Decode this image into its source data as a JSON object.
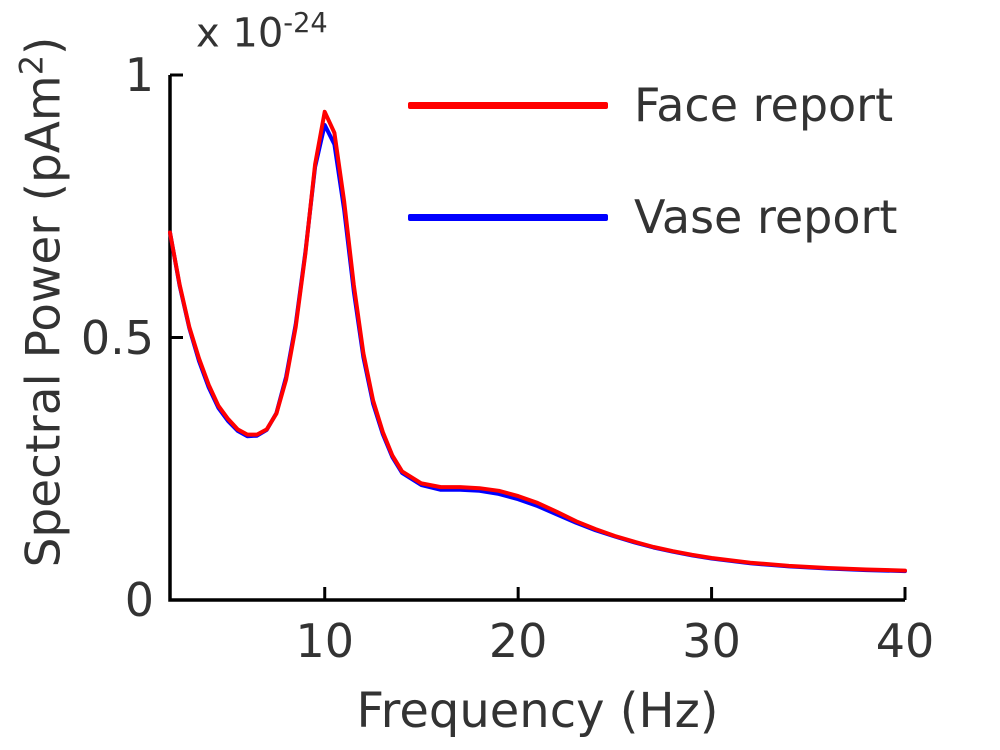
{
  "colors": {
    "axis": "#000000",
    "text": "#333333",
    "background": "#ffffff"
  },
  "chart_data": {
    "type": "line",
    "title": "",
    "xlabel": "Frequency (Hz)",
    "ylabel": "Spectral Power (pAm²)",
    "ylabel_base": "Spectral Power (pAm",
    "ylabel_sup": "2",
    "ylabel_close": ")",
    "y_multiplier_base": "x 10",
    "y_multiplier_exp": "-24",
    "xlim": [
      2,
      40
    ],
    "ylim": [
      0,
      1
    ],
    "xticks": [
      10,
      20,
      30,
      40
    ],
    "xtick_labels": [
      "10",
      "20",
      "30",
      "40"
    ],
    "yticks": [
      0,
      0.5,
      1
    ],
    "ytick_labels": [
      "0",
      "0.5",
      "1"
    ],
    "grid": false,
    "legend_position": "top-right",
    "x": [
      2,
      2.5,
      3,
      3.5,
      4,
      4.5,
      5,
      5.5,
      6,
      6.5,
      7,
      7.5,
      8,
      8.5,
      9,
      9.5,
      10,
      10.5,
      11,
      11.5,
      12,
      12.5,
      13,
      13.5,
      14,
      15,
      16,
      17,
      18,
      19,
      20,
      21,
      22,
      23,
      24,
      25,
      26,
      27,
      28,
      29,
      30,
      32,
      34,
      36,
      38,
      40
    ],
    "series": [
      {
        "name": "Face report",
        "color": "#ff0000",
        "values": [
          0.7,
          0.6,
          0.52,
          0.46,
          0.41,
          0.37,
          0.345,
          0.325,
          0.315,
          0.315,
          0.325,
          0.355,
          0.42,
          0.52,
          0.66,
          0.83,
          0.93,
          0.89,
          0.76,
          0.6,
          0.47,
          0.38,
          0.32,
          0.275,
          0.245,
          0.222,
          0.215,
          0.215,
          0.213,
          0.208,
          0.198,
          0.185,
          0.168,
          0.15,
          0.135,
          0.122,
          0.111,
          0.101,
          0.093,
          0.086,
          0.08,
          0.071,
          0.065,
          0.061,
          0.058,
          0.056
        ]
      },
      {
        "name": "Vase report",
        "color": "#0000ff",
        "values": [
          0.7,
          0.598,
          0.518,
          0.455,
          0.405,
          0.366,
          0.341,
          0.322,
          0.312,
          0.313,
          0.324,
          0.356,
          0.425,
          0.525,
          0.663,
          0.825,
          0.905,
          0.868,
          0.744,
          0.588,
          0.462,
          0.374,
          0.316,
          0.272,
          0.242,
          0.219,
          0.21,
          0.21,
          0.208,
          0.202,
          0.192,
          0.179,
          0.163,
          0.147,
          0.133,
          0.121,
          0.11,
          0.1,
          0.092,
          0.085,
          0.079,
          0.07,
          0.064,
          0.06,
          0.057,
          0.055
        ]
      }
    ]
  }
}
